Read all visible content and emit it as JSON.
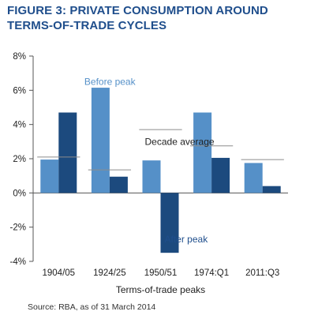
{
  "title": {
    "line1": "FIGURE 3: PRIVATE CONSUMPTION AROUND",
    "line2": "TERMS-OF-TRADE CYCLES"
  },
  "source": "Source: RBA, as of 31 March 2014",
  "colors": {
    "before": "#5590c8",
    "after": "#1c4a7e",
    "title": "#1f4e8c",
    "average_line": "#8c8c8c"
  },
  "chart_data": {
    "type": "bar",
    "title": "FIGURE 3: PRIVATE CONSUMPTION AROUND TERMS-OF-TRADE CYCLES",
    "xlabel": "Terms-of-trade peaks",
    "ylabel": "",
    "categories": [
      "1904/05",
      "1924/25",
      "1950/51",
      "1974:Q1",
      "2011:Q3"
    ],
    "series": [
      {
        "name": "Before peak",
        "values": [
          1.95,
          6.15,
          1.9,
          4.7,
          1.75
        ]
      },
      {
        "name": "After peak",
        "values": [
          4.7,
          0.95,
          -3.5,
          2.05,
          0.4
        ]
      }
    ],
    "decade_average": {
      "label": "Decade average",
      "values": [
        2.1,
        1.35,
        3.7,
        2.75,
        1.95
      ]
    },
    "ylim": [
      -4,
      8
    ],
    "yticks": [
      -4,
      -2,
      0,
      2,
      4,
      6,
      8
    ],
    "ytick_labels": [
      "-4%",
      "-2%",
      "0%",
      "2%",
      "4%",
      "6%",
      "8%"
    ],
    "annotations": {
      "before": "Before peak",
      "after": "After peak",
      "average": "Decade average"
    },
    "grid": false,
    "legend": "none"
  }
}
